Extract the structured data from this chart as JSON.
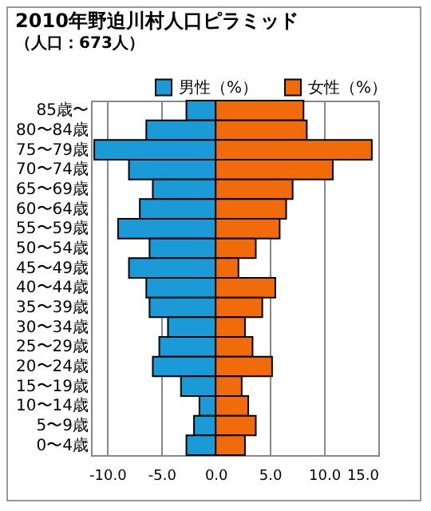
{
  "chart_data": {
    "type": "bar",
    "orientation": "horizontal",
    "stacked": true,
    "title": "2010年野迫川村人口ピラミッド",
    "subtitle": "（人口：673人）",
    "categories": [
      "85歳〜",
      "80〜84歳",
      "75〜79歳",
      "70〜74歳",
      "65〜69歳",
      "60〜64歳",
      "55〜59歳",
      "50〜54歳",
      "45〜49歳",
      "40〜44歳",
      "35〜39歳",
      "30〜34歳",
      "25〜29歳",
      "20〜24歳",
      "15〜19歳",
      "10〜14歳",
      "5〜9歳",
      "0〜4歳"
    ],
    "series": [
      {
        "name": "男性（%）",
        "color": "#1a9ad6",
        "values": [
          -2.7,
          -6.4,
          -11.2,
          -8.0,
          -5.8,
          -7.0,
          -9.0,
          -6.1,
          -8.0,
          -6.4,
          -6.1,
          -4.4,
          -5.2,
          -5.8,
          -3.2,
          -1.5,
          -2.0,
          -2.7
        ]
      },
      {
        "name": "女性（%）",
        "color": "#f26b0a",
        "values": [
          8.1,
          8.4,
          14.4,
          10.8,
          7.1,
          6.5,
          5.9,
          3.7,
          2.1,
          5.5,
          4.3,
          2.7,
          3.4,
          5.2,
          2.4,
          3.0,
          3.7,
          2.7
        ]
      }
    ],
    "xlim": [
      -11.5,
      15
    ],
    "xticks": [
      {
        "value": -10,
        "label": "-10.0"
      },
      {
        "value": -5,
        "label": "-5.0"
      },
      {
        "value": 0,
        "label": "0.0"
      },
      {
        "value": 5,
        "label": "5.0"
      },
      {
        "value": 10,
        "label": "10.0"
      },
      {
        "value": 15,
        "label": "15.0"
      }
    ],
    "grid": "x",
    "legend": "top right"
  }
}
